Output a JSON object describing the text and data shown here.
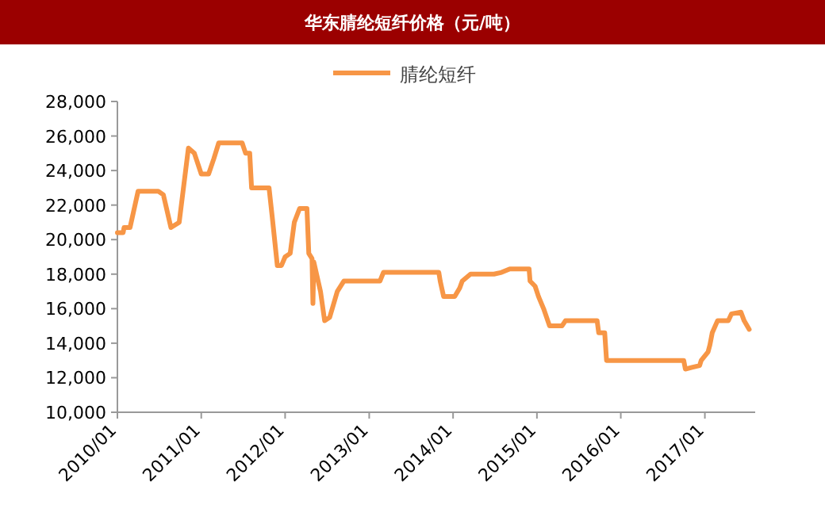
{
  "chart_data": {
    "type": "line",
    "title": "华东腈纶短纤价格（元/吨）",
    "legend": "top",
    "grid": false,
    "line_style": "solid",
    "marker": "none",
    "xlim": [
      "2010-01-01",
      "2017-08-08"
    ],
    "xticks": [
      {
        "value": "2010-01-01",
        "label": "2010/01"
      },
      {
        "value": "2011-01-01",
        "label": "2011/01"
      },
      {
        "value": "2012-01-01",
        "label": "2012/01"
      },
      {
        "value": "2013-01-01",
        "label": "2013/01"
      },
      {
        "value": "2014-01-01",
        "label": "2014/01"
      },
      {
        "value": "2015-01-01",
        "label": "2015/01"
      },
      {
        "value": "2016-01-01",
        "label": "2016/01"
      },
      {
        "value": "2017-01-01",
        "label": "2017/01"
      }
    ],
    "ylim": [
      10000,
      28000
    ],
    "yticks": [
      {
        "value": 10000,
        "label": "10,000"
      },
      {
        "value": 12000,
        "label": "12,000"
      },
      {
        "value": 14000,
        "label": "14,000"
      },
      {
        "value": 16000,
        "label": "16,000"
      },
      {
        "value": 18000,
        "label": "18,000"
      },
      {
        "value": 20000,
        "label": "20,000"
      },
      {
        "value": 22000,
        "label": "22,000"
      },
      {
        "value": 24000,
        "label": "24,000"
      },
      {
        "value": 26000,
        "label": "26,000"
      },
      {
        "value": 28000,
        "label": "28,000"
      }
    ],
    "series": [
      {
        "name": "腈纶短纤",
        "color": "#f79646",
        "x": [
          "2010-01-01",
          "2010-01-26",
          "2010-01-30",
          "2010-02-25",
          "2010-04-01",
          "2010-06-28",
          "2010-07-20",
          "2010-08-22",
          "2010-09-27",
          "2010-11-06",
          "2010-12-02",
          "2011-01-01",
          "2011-02-02",
          "2011-02-25",
          "2011-03-18",
          "2011-06-28",
          "2011-07-13",
          "2011-07-31",
          "2011-08-08",
          "2011-10-23",
          "2011-11-06",
          "2011-11-28",
          "2011-12-16",
          "2012-01-01",
          "2012-01-23",
          "2012-02-10",
          "2012-03-04",
          "2012-04-05",
          "2012-04-13",
          "2012-04-27",
          "2012-05-01",
          "2012-05-05",
          "2012-06-03",
          "2012-06-21",
          "2012-07-13",
          "2012-08-15",
          "2012-09-13",
          "2013-02-17",
          "2013-03-04",
          "2013-10-31",
          "2013-11-06",
          "2013-11-21",
          "2014-01-08",
          "2014-01-30",
          "2014-02-10",
          "2014-03-18",
          "2014-06-28",
          "2014-07-31",
          "2014-09-05",
          "2014-11-28",
          "2014-12-02",
          "2014-12-24",
          "2015-01-08",
          "2015-01-30",
          "2015-02-25",
          "2015-04-20",
          "2015-05-05",
          "2015-06-07",
          "2015-09-20",
          "2015-09-27",
          "2015-10-23",
          "2015-10-31",
          "2016-10-01",
          "2016-10-08",
          "2016-11-06",
          "2016-12-09",
          "2016-12-16",
          "2017-01-15",
          "2017-01-23",
          "2017-02-02",
          "2017-02-25",
          "2017-04-13",
          "2017-04-27",
          "2017-06-07",
          "2017-06-21",
          "2017-07-13"
        ],
        "values": [
          20400,
          20400,
          20700,
          20700,
          22800,
          22800,
          22600,
          20700,
          21000,
          25300,
          25000,
          23800,
          23800,
          24700,
          25600,
          25600,
          25000,
          25000,
          23000,
          23000,
          21300,
          18500,
          18500,
          19000,
          19200,
          21000,
          21800,
          21800,
          19200,
          18900,
          16300,
          18700,
          17000,
          15300,
          15500,
          17000,
          17600,
          17600,
          18100,
          18100,
          17600,
          16700,
          16700,
          17200,
          17600,
          18000,
          18000,
          18100,
          18300,
          18300,
          17600,
          17300,
          16700,
          16000,
          15000,
          15000,
          15300,
          15300,
          15300,
          14600,
          14600,
          13000,
          13000,
          12500,
          12600,
          12700,
          13000,
          13500,
          13900,
          14600,
          15300,
          15300,
          15700,
          15800,
          15300,
          14800
        ]
      }
    ]
  }
}
